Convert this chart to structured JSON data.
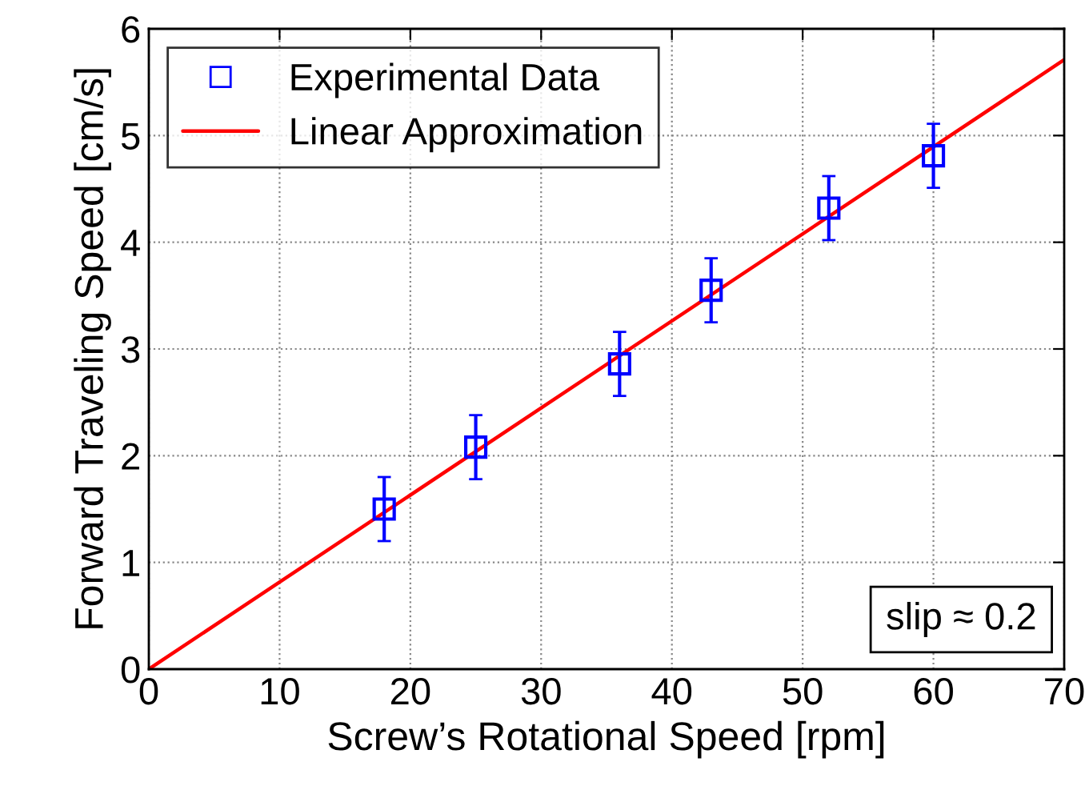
{
  "chart_data": {
    "type": "scatter",
    "xlabel": "Screw’s Rotational Speed [rpm]",
    "ylabel": "Forward Traveling Speed [cm/s]",
    "xlim": [
      0,
      70
    ],
    "xticks": [
      0,
      10,
      20,
      30,
      40,
      50,
      60,
      70
    ],
    "ylim": [
      0,
      6
    ],
    "yticks": [
      0,
      1,
      2,
      3,
      4,
      5,
      6
    ],
    "grid": true,
    "legend": "top left",
    "annotations": [
      "slip ≈ 0.2"
    ],
    "series": [
      {
        "name": "Experimental Data",
        "color": "#0000ff",
        "marker": "square",
        "x": [
          18,
          25,
          36,
          43,
          52,
          60
        ],
        "values": [
          1.5,
          2.08,
          2.86,
          3.55,
          4.32,
          4.81
        ],
        "errors": [
          0.3,
          0.3,
          0.3,
          0.3,
          0.3,
          0.3
        ]
      },
      {
        "name": "Linear Approximation",
        "type": "line",
        "color": "#ff0000",
        "marker": "none",
        "line_style": "solid",
        "x": [
          0,
          70
        ],
        "values": [
          0,
          5.71
        ]
      }
    ]
  }
}
